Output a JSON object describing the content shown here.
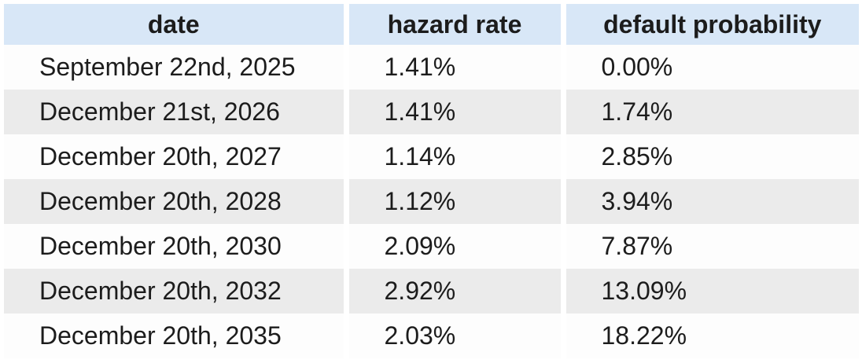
{
  "colors": {
    "header_bg": "#d8e7f7",
    "row_bg": "#fdfdfd",
    "row_alt_bg": "#ebebeb",
    "text": "#1c1c1c"
  },
  "chart_data": {
    "type": "table",
    "columns": [
      "date",
      "hazard rate",
      "default probability"
    ],
    "rows": [
      [
        "September 22nd, 2025",
        "1.41%",
        "0.00%"
      ],
      [
        "December 21st, 2026",
        "1.41%",
        "1.74%"
      ],
      [
        "December 20th, 2027",
        "1.14%",
        "2.85%"
      ],
      [
        "December 20th, 2028",
        "1.12%",
        "3.94%"
      ],
      [
        "December 20th, 2030",
        "2.09%",
        "7.87%"
      ],
      [
        "December 20th, 2032",
        "2.92%",
        "13.09%"
      ],
      [
        "December 20th, 2035",
        "2.03%",
        "18.22%"
      ]
    ]
  }
}
